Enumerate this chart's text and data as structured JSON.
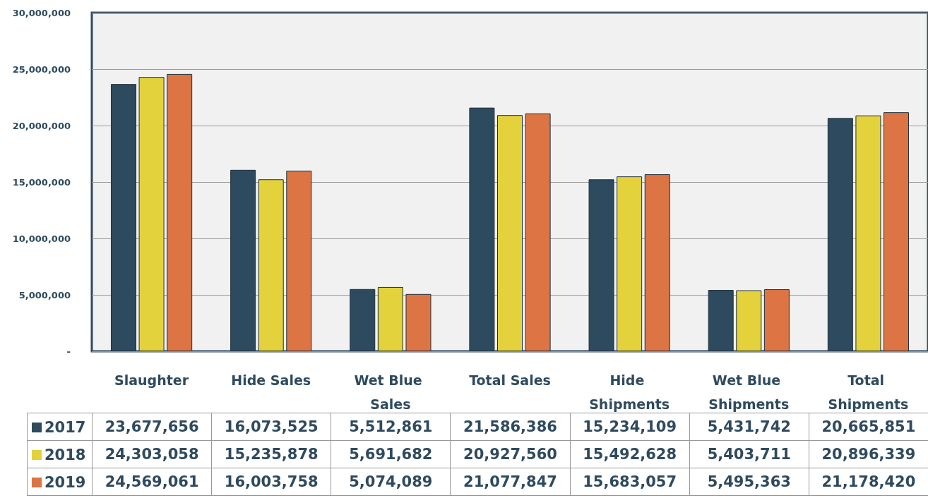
{
  "chart_data": {
    "type": "bar",
    "categories": [
      "Slaughter",
      "Hide Sales",
      "Wet Blue Sales",
      "Total Sales",
      "Hide Shipments",
      "Wet Blue Shipments",
      "Total Shipments"
    ],
    "series": [
      {
        "name": "2017",
        "color": "#2e4a5f",
        "values": [
          23677656,
          16073525,
          5512861,
          21586386,
          15234109,
          5431742,
          20665851
        ],
        "value_labels": [
          "23,677,656",
          "16,073,525",
          "5,512,861",
          "21,586,386",
          "15,234,109",
          "5,431,742",
          "20,665,851"
        ]
      },
      {
        "name": "2018",
        "color": "#e3d23c",
        "values": [
          24303058,
          15235878,
          5691682,
          20927560,
          15492628,
          5403711,
          20896339
        ],
        "value_labels": [
          "24,303,058",
          "15,235,878",
          "5,691,682",
          "20,927,560",
          "15,492,628",
          "5,403,711",
          "20,896,339"
        ]
      },
      {
        "name": "2019",
        "color": "#dc7444",
        "values": [
          24569061,
          16003758,
          5074089,
          21077847,
          15683057,
          5495363,
          21178420
        ],
        "value_labels": [
          "24,569,061",
          "16,003,758",
          "5,074,089",
          "21,077,847",
          "15,683,057",
          "5,495,363",
          "21,178,420"
        ]
      }
    ],
    "ylim": [
      0,
      30000000
    ],
    "yticks": [
      {
        "value": 0,
        "label": "-"
      },
      {
        "value": 5000000,
        "label": "5,000,000"
      },
      {
        "value": 10000000,
        "label": "10,000,000"
      },
      {
        "value": 15000000,
        "label": "15,000,000"
      },
      {
        "value": 20000000,
        "label": "20,000,000"
      },
      {
        "value": 25000000,
        "label": "25,000,000"
      },
      {
        "value": 30000000,
        "label": "30,000,000"
      }
    ],
    "grid": "y",
    "legend": "bottom"
  }
}
